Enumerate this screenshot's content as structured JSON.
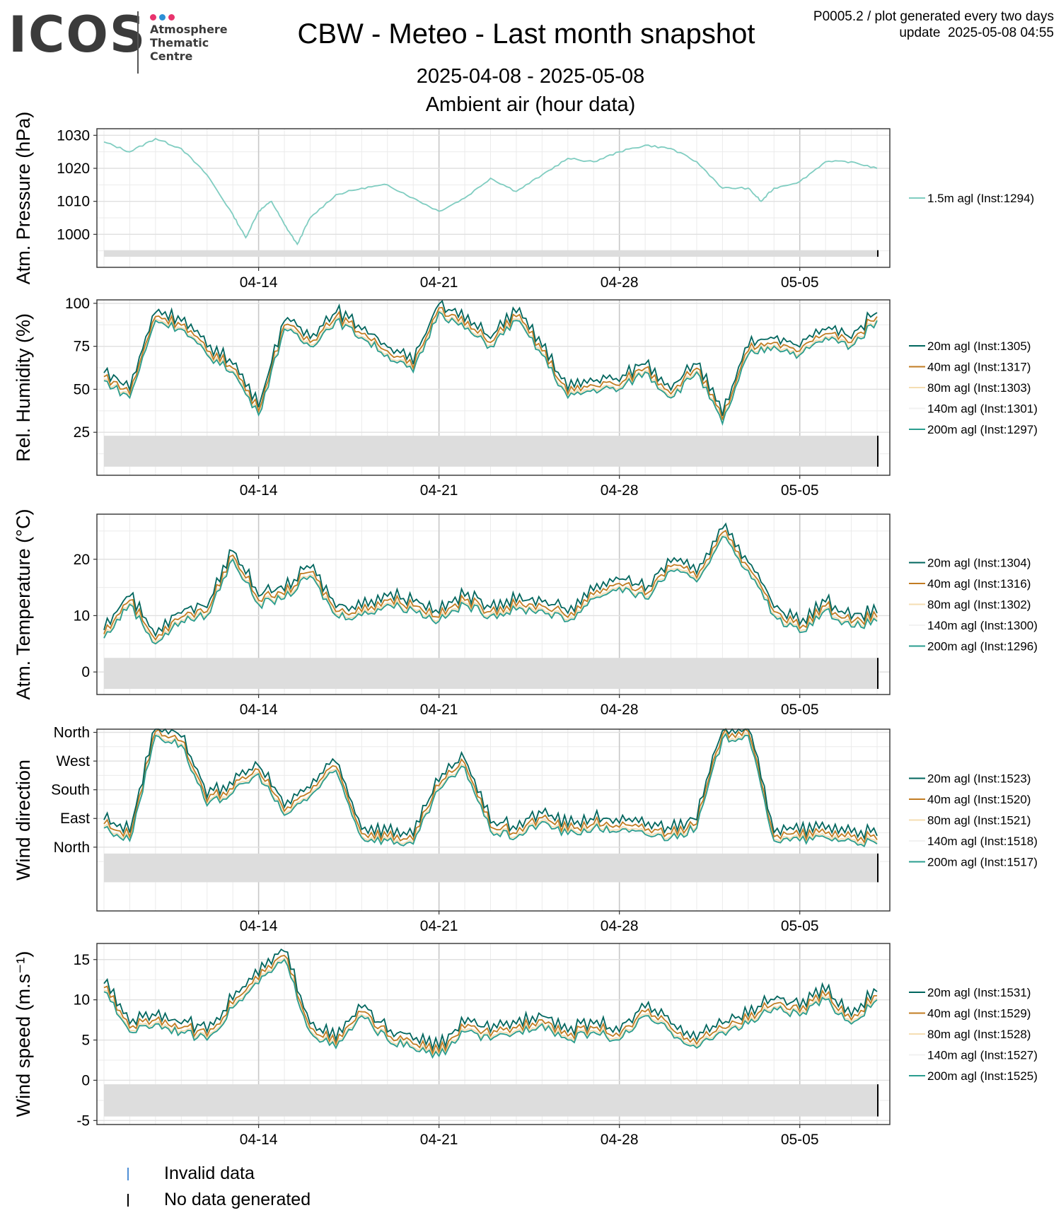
{
  "header": {
    "logo_text": "ICOS",
    "logo_subtitle": "Atmosphere\nThematic\nCentre",
    "logo_dot_colors": [
      "#e8336d",
      "#2d8fd6",
      "#e8336d"
    ],
    "title": "CBW - Meteo - Last month snapshot",
    "meta_line1": "P0005.2 / plot generated every two days",
    "meta_line2": "update  2025-05-08 04:55",
    "date_range": "2025-04-08 - 2025-05-08",
    "subtitle": "Ambient air (hour data)"
  },
  "footer_legend": {
    "invalid_label": "Invalid data",
    "invalid_color": "#4f8fd6",
    "nodata_label": "No data generated",
    "nodata_color": "#000000"
  },
  "colors": {
    "20m": "#00665e",
    "40m": "#c27c22",
    "80m": "#f5deb3",
    "140m": "#f2f2f2",
    "200m": "#2a9d8f",
    "1.5m": "#80cdc1",
    "nodata_band": "#dddddd"
  },
  "chart_data": [
    {
      "type": "line",
      "ylabel": "Atm. Pressure (hPa)",
      "xlim": [
        "2025-04-08",
        "2025-05-08"
      ],
      "x_ticks": [
        "04-14",
        "04-21",
        "04-28",
        "05-05"
      ],
      "ylim": [
        990,
        1032
      ],
      "y_ticks": [
        1000,
        1010,
        1020,
        1030
      ],
      "nodata_band": [
        993.2,
        995.2
      ],
      "series": [
        {
          "name": "1.5m agl (Inst:1294)",
          "key": "1.5m",
          "x": [
            "2025-04-08",
            "2025-04-09",
            "2025-04-10",
            "2025-04-11",
            "2025-04-12",
            "2025-04-13",
            "2025-04-13 12:00",
            "2025-04-14",
            "2025-04-14 12:00",
            "2025-04-15",
            "2025-04-15 12:00",
            "2025-04-16",
            "2025-04-17",
            "2025-04-18",
            "2025-04-19",
            "2025-04-20",
            "2025-04-21",
            "2025-04-22",
            "2025-04-23",
            "2025-04-24",
            "2025-04-25",
            "2025-04-26",
            "2025-04-27",
            "2025-04-28",
            "2025-04-29",
            "2025-04-30",
            "2025-05-01",
            "2025-05-02",
            "2025-05-03",
            "2025-05-03 12:00",
            "2025-05-04",
            "2025-05-05",
            "2025-05-06",
            "2025-05-07",
            "2025-05-08"
          ],
          "values": [
            1028,
            1025,
            1029,
            1026,
            1018,
            1006,
            999,
            1007,
            1010,
            1003,
            997,
            1005,
            1012,
            1014,
            1015,
            1011,
            1007,
            1011,
            1017,
            1013,
            1018,
            1023,
            1022,
            1025,
            1027,
            1026,
            1022,
            1014,
            1014,
            1010,
            1014,
            1016,
            1022,
            1022,
            1020
          ]
        }
      ]
    },
    {
      "type": "line",
      "ylabel": "Rel. Humidity (%)",
      "xlim": [
        "2025-04-08",
        "2025-05-08"
      ],
      "x_ticks": [
        "04-14",
        "04-21",
        "04-28",
        "05-05"
      ],
      "ylim": [
        0,
        102
      ],
      "y_ticks": [
        25,
        50,
        75,
        100
      ],
      "nodata_band": [
        5,
        23
      ],
      "series": [
        {
          "name": "20m agl (Inst:1305)",
          "key": "20m"
        },
        {
          "name": "40m agl (Inst:1317)",
          "key": "40m"
        },
        {
          "name": "80m agl (Inst:1303)",
          "key": "80m"
        },
        {
          "name": "140m agl (Inst:1301)",
          "key": "140m"
        },
        {
          "name": "200m agl (Inst:1297)",
          "key": "200m",
          "x": [
            "2025-04-08",
            "2025-04-09",
            "2025-04-10",
            "2025-04-11",
            "2025-04-12",
            "2025-04-13",
            "2025-04-14",
            "2025-04-15",
            "2025-04-16",
            "2025-04-17",
            "2025-04-18",
            "2025-04-19",
            "2025-04-20",
            "2025-04-21",
            "2025-04-22",
            "2025-04-23",
            "2025-04-24",
            "2025-04-25",
            "2025-04-26",
            "2025-04-27",
            "2025-04-28",
            "2025-04-29",
            "2025-04-30",
            "2025-05-01",
            "2025-05-02",
            "2025-05-03",
            "2025-05-04",
            "2025-05-05",
            "2025-05-06",
            "2025-05-07",
            "2025-05-08"
          ],
          "values": [
            55,
            45,
            90,
            85,
            70,
            60,
            35,
            85,
            75,
            90,
            80,
            70,
            60,
            95,
            85,
            75,
            90,
            70,
            45,
            50,
            50,
            60,
            45,
            60,
            30,
            70,
            75,
            70,
            80,
            75,
            90
          ]
        }
      ]
    },
    {
      "type": "line",
      "ylabel": "Atm. Temperature (°C)",
      "xlim": [
        "2025-04-08",
        "2025-05-08"
      ],
      "x_ticks": [
        "04-14",
        "04-21",
        "04-28",
        "05-05"
      ],
      "ylim": [
        -4,
        28
      ],
      "y_ticks": [
        0,
        10,
        20
      ],
      "nodata_band": [
        -3,
        2.5
      ],
      "series": [
        {
          "name": "20m agl (Inst:1304)",
          "key": "20m"
        },
        {
          "name": "40m agl (Inst:1316)",
          "key": "40m"
        },
        {
          "name": "80m agl (Inst:1302)",
          "key": "80m"
        },
        {
          "name": "140m agl (Inst:1300)",
          "key": "140m"
        },
        {
          "name": "200m agl (Inst:1296)",
          "key": "200m",
          "x": [
            "2025-04-08",
            "2025-04-09",
            "2025-04-10",
            "2025-04-11",
            "2025-04-12",
            "2025-04-13",
            "2025-04-14",
            "2025-04-15",
            "2025-04-16",
            "2025-04-17",
            "2025-04-18",
            "2025-04-19",
            "2025-04-20",
            "2025-04-21",
            "2025-04-22",
            "2025-04-23",
            "2025-04-24",
            "2025-04-25",
            "2025-04-26",
            "2025-04-27",
            "2025-04-28",
            "2025-04-29",
            "2025-04-30",
            "2025-05-01",
            "2025-05-02",
            "2025-05-03",
            "2025-05-04",
            "2025-05-05",
            "2025-05-06",
            "2025-05-07",
            "2025-05-08"
          ],
          "values": [
            6,
            12,
            5,
            9,
            10,
            20,
            12,
            13,
            17,
            10,
            10,
            12,
            11,
            9,
            12,
            10,
            11,
            11,
            9,
            13,
            15,
            13,
            18,
            16,
            24,
            18,
            10,
            7,
            11,
            8,
            9
          ]
        }
      ]
    },
    {
      "type": "line",
      "ylabel": "Wind direction",
      "xlim": [
        "2025-04-08",
        "2025-05-08"
      ],
      "x_ticks": [
        "04-14",
        "04-21",
        "04-28",
        "05-05"
      ],
      "ylim": [
        -200,
        370
      ],
      "y_ticks": [
        0,
        90,
        180,
        270,
        360
      ],
      "y_tick_labels": [
        "North",
        "East",
        "South",
        "West",
        "North"
      ],
      "nodata_band": [
        -110,
        -20
      ],
      "series": [
        {
          "name": "20m agl (Inst:1523)",
          "key": "20m"
        },
        {
          "name": "40m agl (Inst:1520)",
          "key": "40m"
        },
        {
          "name": "80m agl (Inst:1521)",
          "key": "80m"
        },
        {
          "name": "140m agl (Inst:1518)",
          "key": "140m"
        },
        {
          "name": "200m agl (Inst:1517)",
          "key": "200m",
          "x": [
            "2025-04-08",
            "2025-04-09",
            "2025-04-10",
            "2025-04-11",
            "2025-04-12",
            "2025-04-13",
            "2025-04-14",
            "2025-04-15",
            "2025-04-16",
            "2025-04-17",
            "2025-04-18",
            "2025-04-19",
            "2025-04-20",
            "2025-04-21",
            "2025-04-22",
            "2025-04-23",
            "2025-04-24",
            "2025-04-25",
            "2025-04-26",
            "2025-04-27",
            "2025-04-28",
            "2025-04-29",
            "2025-04-30",
            "2025-05-01",
            "2025-05-02",
            "2025-05-03",
            "2025-05-04",
            "2025-05-05",
            "2025-05-06",
            "2025-05-07",
            "2025-05-08"
          ],
          "values": [
            60,
            20,
            350,
            320,
            130,
            170,
            230,
            100,
            160,
            240,
            30,
            20,
            10,
            180,
            250,
            50,
            30,
            80,
            40,
            60,
            50,
            40,
            30,
            60,
            340,
            350,
            20,
            20,
            30,
            20,
            10
          ]
        }
      ]
    },
    {
      "type": "line",
      "ylabel": "Wind speed (m.s⁻¹)",
      "xlim": [
        "2025-04-08",
        "2025-05-08"
      ],
      "x_ticks": [
        "04-14",
        "04-21",
        "04-28",
        "05-05"
      ],
      "ylim": [
        -5.5,
        17
      ],
      "y_ticks": [
        -5,
        0,
        5,
        10,
        15
      ],
      "nodata_band": [
        -4.5,
        -0.5
      ],
      "series": [
        {
          "name": "20m agl (Inst:1531)",
          "key": "20m"
        },
        {
          "name": "40m agl (Inst:1529)",
          "key": "40m"
        },
        {
          "name": "80m agl (Inst:1528)",
          "key": "80m"
        },
        {
          "name": "140m agl (Inst:1527)",
          "key": "140m"
        },
        {
          "name": "200m agl (Inst:1525)",
          "key": "200m",
          "x": [
            "2025-04-08",
            "2025-04-09",
            "2025-04-10",
            "2025-04-11",
            "2025-04-12",
            "2025-04-13",
            "2025-04-14",
            "2025-04-15",
            "2025-04-16",
            "2025-04-17",
            "2025-04-18",
            "2025-04-19",
            "2025-04-20",
            "2025-04-21",
            "2025-04-22",
            "2025-04-23",
            "2025-04-24",
            "2025-04-25",
            "2025-04-26",
            "2025-04-27",
            "2025-04-28",
            "2025-04-29",
            "2025-04-30",
            "2025-05-01",
            "2025-05-02",
            "2025-05-03",
            "2025-05-04",
            "2025-05-05",
            "2025-05-06",
            "2025-05-07",
            "2025-05-08"
          ],
          "values": [
            11,
            6,
            7,
            6,
            5,
            9,
            12,
            15,
            6,
            4,
            8,
            5,
            4,
            3,
            6,
            5,
            6,
            7,
            5,
            6,
            5,
            8,
            6,
            4,
            6,
            7,
            9,
            8,
            10,
            7,
            10
          ]
        }
      ]
    }
  ]
}
